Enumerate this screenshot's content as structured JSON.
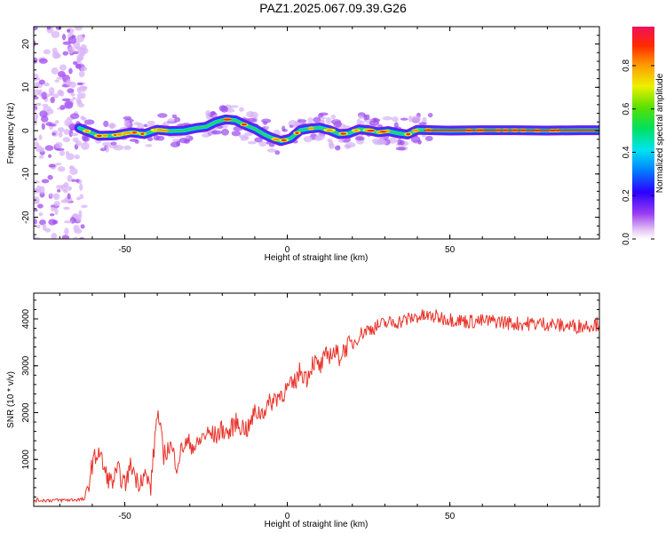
{
  "title": "PAZ1.2025.067.09.39.G26",
  "chart_data": [
    {
      "type": "heatmap",
      "title": "PAZ1.2025.067.09.39.G26",
      "xlabel": "Height of straight line (km)",
      "ylabel": "Frequency (Hz)",
      "xlim": [
        -78,
        96
      ],
      "ylim": [
        -25,
        24
      ],
      "xticks": [
        -50,
        0,
        50
      ],
      "yticks": [
        -20,
        -10,
        0,
        10,
        20
      ],
      "colorbar": {
        "label": "Normalized spectral amplitude",
        "range": [
          0,
          0.98
        ],
        "ticks": [
          0.0,
          0.2,
          0.4,
          0.6,
          0.8
        ]
      },
      "ridge": {
        "x": [
          -64,
          -58,
          -53,
          -48,
          -44,
          -40,
          -36,
          -32,
          -28,
          -25,
          -22,
          -19,
          -16,
          -13,
          -10,
          -7,
          -5,
          -2,
          1,
          4,
          7,
          10,
          13,
          16,
          19,
          22,
          25,
          28,
          31,
          34,
          37,
          40,
          45,
          50,
          60,
          70,
          80,
          90,
          96
        ],
        "y": [
          0.6,
          -1.2,
          -1.1,
          -0.4,
          -0.8,
          0.2,
          -0.1,
          0.0,
          0.6,
          0.9,
          2.0,
          2.6,
          2.4,
          1.3,
          0.4,
          -0.9,
          -1.6,
          -2.4,
          -1.8,
          0.1,
          0.5,
          0.7,
          0.1,
          -0.8,
          -0.6,
          0.3,
          0.1,
          -0.4,
          -0.1,
          -0.6,
          -0.9,
          0.2,
          0.1,
          0.0,
          0.1,
          0.1,
          0.0,
          0.1,
          0.1
        ]
      }
    },
    {
      "type": "line",
      "xlabel": "Height of straight line (km)",
      "ylabel": "SNR (10 * v/v)",
      "xlim": [
        -78,
        96
      ],
      "ylim": [
        0,
        4550
      ],
      "xticks": [
        -50,
        0,
        50
      ],
      "yticks": [
        1000,
        2000,
        3000,
        4000
      ],
      "color": "#e8332a",
      "x": [
        -78,
        -70,
        -62,
        -60,
        -58,
        -56,
        -54,
        -52,
        -50,
        -48,
        -46,
        -44,
        -42,
        -40,
        -38,
        -36,
        -34,
        -32,
        -30,
        -28,
        -26,
        -24,
        -22,
        -20,
        -18,
        -16,
        -14,
        -12,
        -10,
        -8,
        -6,
        -4,
        -2,
        0,
        2,
        4,
        6,
        8,
        10,
        12,
        14,
        16,
        18,
        20,
        22,
        24,
        26,
        28,
        30,
        35,
        40,
        45,
        50,
        55,
        60,
        65,
        70,
        75,
        80,
        85,
        90,
        96
      ],
      "y": [
        130,
        130,
        150,
        900,
        1200,
        700,
        500,
        750,
        450,
        900,
        500,
        700,
        400,
        2050,
        1100,
        1300,
        900,
        1300,
        1350,
        1250,
        1500,
        1550,
        1500,
        1650,
        1550,
        1800,
        1700,
        1650,
        2000,
        2000,
        2150,
        2300,
        2400,
        2500,
        2600,
        2900,
        2750,
        3100,
        2950,
        3200,
        3300,
        3200,
        3400,
        3450,
        3650,
        3750,
        3800,
        3850,
        3900,
        3950,
        4050,
        4050,
        4000,
        3950,
        3950,
        3950,
        3900,
        3900,
        3900,
        3850,
        3850,
        3900
      ]
    }
  ]
}
